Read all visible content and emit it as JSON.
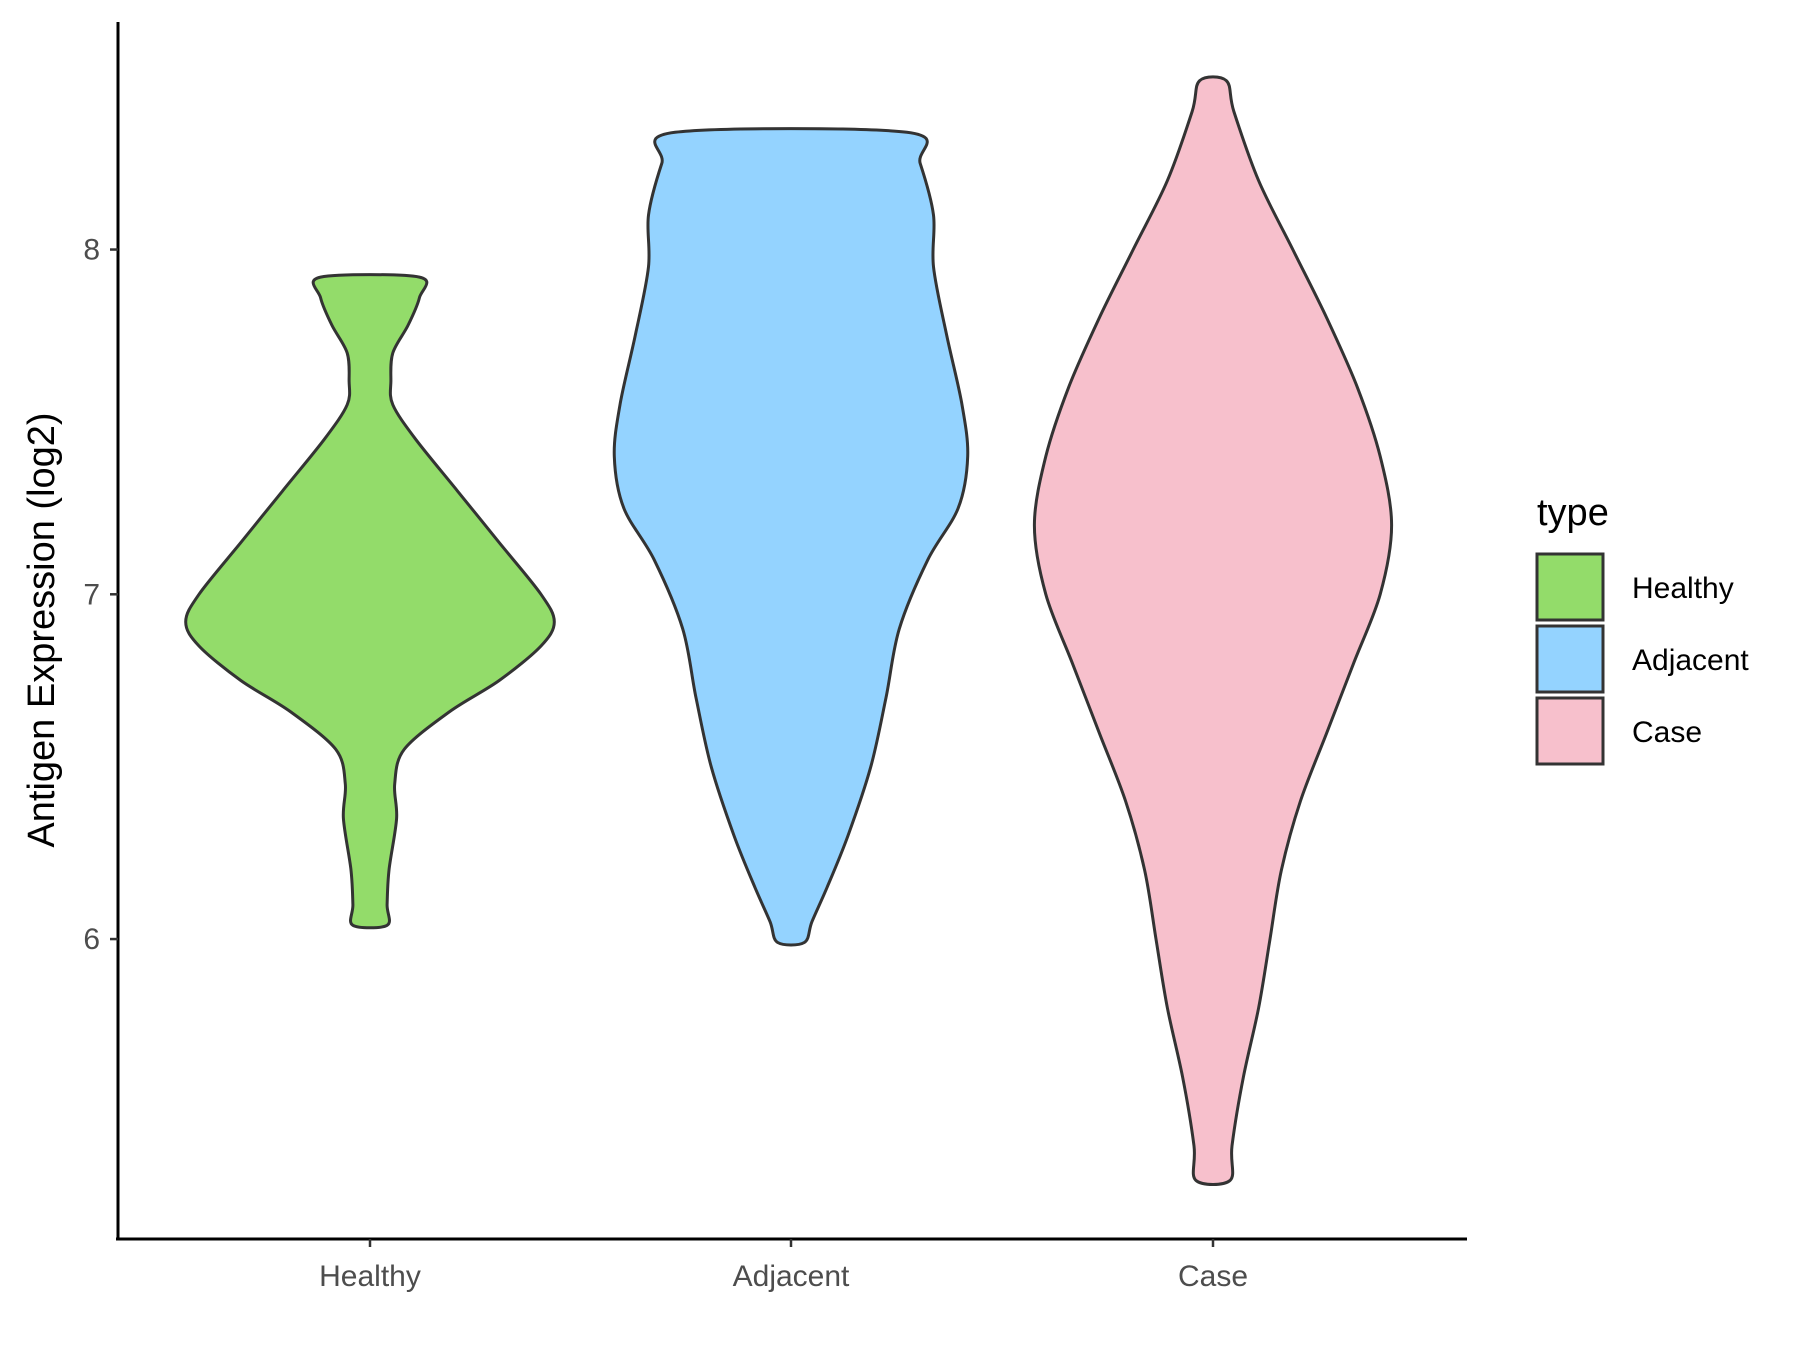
{
  "chart_data": {
    "type": "violin",
    "ylabel": "Antigen Expression (log2)",
    "xlabel": "",
    "categories": [
      "Healthy",
      "Adjacent",
      "Case"
    ],
    "ylim": [
      5.13,
      8.66
    ],
    "y_ticks": [
      "6",
      "7",
      "8"
    ],
    "grid": false,
    "legend": {
      "title": "type",
      "placement": "right",
      "entries": [
        "Healthy",
        "Adjacent",
        "Case"
      ]
    },
    "colors": {
      "Healthy": "#93dc6a",
      "Adjacent": "#94d3ff",
      "Case": "#f7c0cc",
      "outline": "#333333",
      "axis": "#000000"
    },
    "series": [
      {
        "category": "Healthy",
        "min": 6.04,
        "max": 7.92,
        "density_profile": [
          [
            7.92,
            0.26
          ],
          [
            7.86,
            0.26
          ],
          [
            7.78,
            0.2
          ],
          [
            7.7,
            0.12
          ],
          [
            7.62,
            0.11
          ],
          [
            7.55,
            0.12
          ],
          [
            7.45,
            0.24
          ],
          [
            7.3,
            0.46
          ],
          [
            7.15,
            0.68
          ],
          [
            7.0,
            0.9
          ],
          [
            6.92,
            0.97
          ],
          [
            6.85,
            0.9
          ],
          [
            6.75,
            0.68
          ],
          [
            6.66,
            0.42
          ],
          [
            6.55,
            0.18
          ],
          [
            6.45,
            0.13
          ],
          [
            6.35,
            0.14
          ],
          [
            6.2,
            0.1
          ],
          [
            6.1,
            0.09
          ],
          [
            6.04,
            0.09
          ]
        ]
      },
      {
        "category": "Adjacent",
        "min": 5.99,
        "max": 8.34,
        "density_profile": [
          [
            8.34,
            0.61
          ],
          [
            8.25,
            0.68
          ],
          [
            8.1,
            0.75
          ],
          [
            7.95,
            0.75
          ],
          [
            7.75,
            0.82
          ],
          [
            7.55,
            0.9
          ],
          [
            7.4,
            0.93
          ],
          [
            7.25,
            0.88
          ],
          [
            7.1,
            0.72
          ],
          [
            6.9,
            0.57
          ],
          [
            6.7,
            0.5
          ],
          [
            6.5,
            0.42
          ],
          [
            6.3,
            0.3
          ],
          [
            6.15,
            0.19
          ],
          [
            6.05,
            0.11
          ],
          [
            5.99,
            0.07
          ]
        ]
      },
      {
        "category": "Case",
        "min": 5.3,
        "max": 8.49,
        "density_profile": [
          [
            8.49,
            0.07
          ],
          [
            8.4,
            0.11
          ],
          [
            8.2,
            0.24
          ],
          [
            8.0,
            0.42
          ],
          [
            7.8,
            0.6
          ],
          [
            7.6,
            0.76
          ],
          [
            7.4,
            0.88
          ],
          [
            7.2,
            0.94
          ],
          [
            7.0,
            0.88
          ],
          [
            6.8,
            0.74
          ],
          [
            6.6,
            0.6
          ],
          [
            6.4,
            0.46
          ],
          [
            6.2,
            0.36
          ],
          [
            6.0,
            0.3
          ],
          [
            5.8,
            0.24
          ],
          [
            5.6,
            0.16
          ],
          [
            5.4,
            0.1
          ],
          [
            5.3,
            0.09
          ]
        ]
      }
    ]
  }
}
